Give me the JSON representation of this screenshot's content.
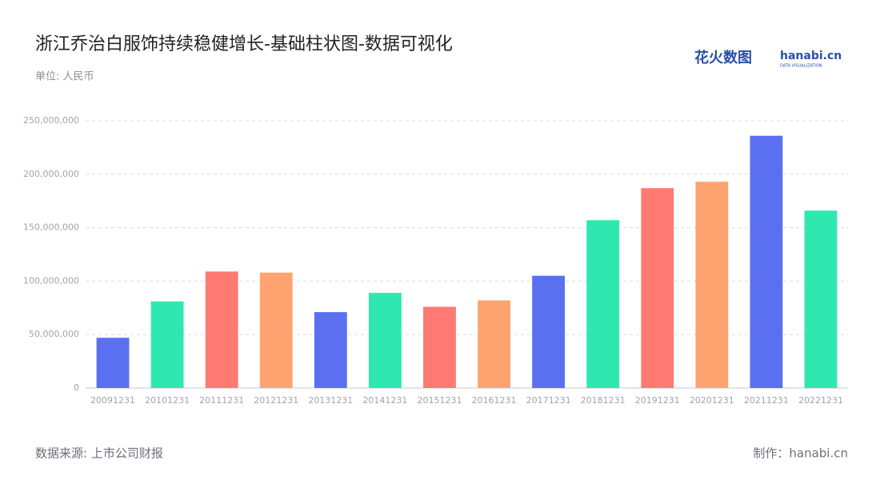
{
  "chart_data": {
    "type": "bar",
    "title": "浙江乔治白服饰持续稳健增长-基础柱状图-数据可视化",
    "subtitle": "单位: 人民币",
    "source": "数据来源: 上市公司财报",
    "credit": "制作：hanabi.cn",
    "logo": {
      "cn": "花火数图",
      "en": "hanabi.cn",
      "tagline": "DATA VISUALIZATION"
    },
    "categories": [
      "20091231",
      "20101231",
      "20111231",
      "20121231",
      "20131231",
      "20141231",
      "20151231",
      "20161231",
      "20171231",
      "20181231",
      "20191231",
      "20201231",
      "20211231",
      "20221231"
    ],
    "values": [
      47000000,
      81000000,
      109000000,
      108000000,
      71000000,
      89000000,
      76000000,
      82000000,
      105000000,
      157000000,
      187000000,
      193000000,
      236000000,
      166000000
    ],
    "colors": [
      "#5b70f0",
      "#2ee8b0",
      "#ff7a72",
      "#ffa470"
    ],
    "ylim": [
      0,
      250000000
    ],
    "yticks": [
      0,
      {
        "value": 50000000,
        "label": "50,000,000"
      },
      {
        "value": 100000000,
        "label": "100,000,000"
      },
      {
        "value": 150000000,
        "label": "150,000,000"
      },
      {
        "value": 200000000,
        "label": "200,000,000"
      },
      {
        "value": 250000000,
        "label": "250,000,000"
      }
    ],
    "grid": true
  }
}
